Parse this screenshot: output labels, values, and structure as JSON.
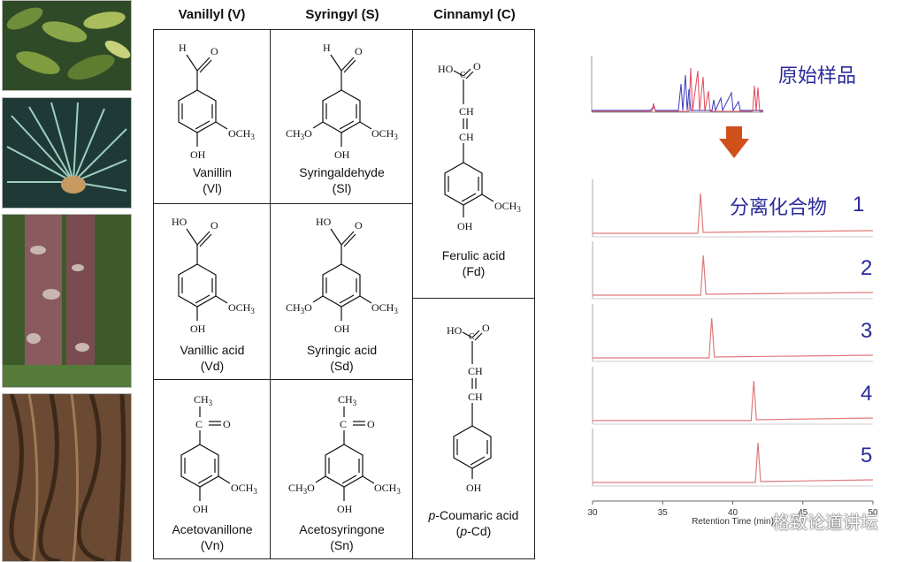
{
  "columns": [
    "Vanillyl (V)",
    "Syringyl (S)",
    "Cinnamyl (C)"
  ],
  "labels": {
    "H": "H",
    "O": "O",
    "OH": "OH",
    "HO": "HO",
    "OCH3": "OCH",
    "H3CO": "CH",
    "CH": "CH",
    "CH3": "CH",
    "three": "3"
  },
  "compounds": {
    "vl": {
      "name": "Vanillin",
      "abbr": "(Vl)"
    },
    "sl": {
      "name": "Syringaldehyde",
      "abbr": "(Sl)"
    },
    "vd": {
      "name": "Vanillic acid",
      "abbr": "(Vd)"
    },
    "sd": {
      "name": "Syringic acid",
      "abbr": "(Sd)"
    },
    "vn": {
      "name": "Acetovanillone",
      "abbr": "(Vn)"
    },
    "sn": {
      "name": "Acetosyringone",
      "abbr": "(Sn)"
    },
    "fd": {
      "name": "Ferulic acid",
      "abbr": "(Fd)"
    },
    "pcd": {
      "name_prefix": "p",
      "name_rest": "-Coumaric acid",
      "abbr_open": "(",
      "abbr_p": "p",
      "abbr_rest": "-Cd)"
    }
  },
  "chromatography": {
    "original_label": "原始样品",
    "separated_label": "分离化合物",
    "numbers": [
      "1",
      "2",
      "3",
      "4",
      "5"
    ],
    "peak_times": [
      37.7,
      37.9,
      38.5,
      41.5,
      41.8
    ],
    "axis": {
      "min": 30,
      "max": 50,
      "ticks": [
        "30",
        "35",
        "40",
        "45",
        "50"
      ],
      "label": "Retention Time (min)"
    },
    "trace_color": "#e07a7a",
    "arrow_color": "#d0501c"
  },
  "watermark": "格致论道讲坛"
}
